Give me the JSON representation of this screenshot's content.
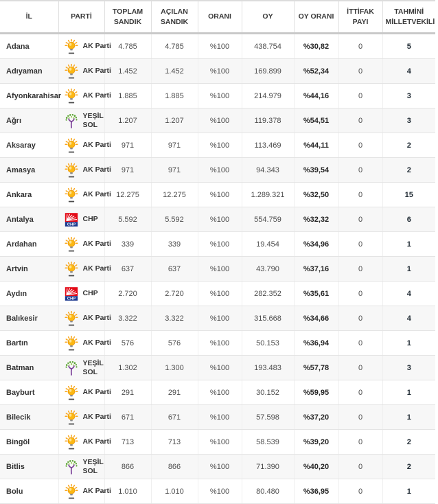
{
  "table": {
    "columns": [
      {
        "key": "il",
        "label": "İL"
      },
      {
        "key": "parti",
        "label": "PARTİ"
      },
      {
        "key": "toplam_sandik",
        "label": "TOPLAM SANDIK"
      },
      {
        "key": "acilan_sandik",
        "label": "AÇILAN SANDIK"
      },
      {
        "key": "orani",
        "label": "ORANI"
      },
      {
        "key": "oy",
        "label": "OY"
      },
      {
        "key": "oy_orani",
        "label": "OY ORANI"
      },
      {
        "key": "ittifak_payi",
        "label": "İTTİFAK PAYI"
      },
      {
        "key": "tahmini_milletvekili",
        "label": "TAHMİNİ MİLLETVEKİLİ"
      }
    ],
    "rows": [
      {
        "il": "Adana",
        "party": {
          "name": "AK Parti",
          "icon": "ak-parti-logo"
        },
        "toplam_sandik": "4.785",
        "acilan_sandik": "4.785",
        "orani": "%100",
        "oy": "438.754",
        "oy_orani": "%30,82",
        "ittifak_payi": "0",
        "tahmini_milletvekili": "5"
      },
      {
        "il": "Adıyaman",
        "party": {
          "name": "AK Parti",
          "icon": "ak-parti-logo"
        },
        "toplam_sandik": "1.452",
        "acilan_sandik": "1.452",
        "orani": "%100",
        "oy": "169.899",
        "oy_orani": "%52,34",
        "ittifak_payi": "0",
        "tahmini_milletvekili": "4"
      },
      {
        "il": "Afyonkarahisar",
        "party": {
          "name": "AK Parti",
          "icon": "ak-parti-logo"
        },
        "toplam_sandik": "1.885",
        "acilan_sandik": "1.885",
        "orani": "%100",
        "oy": "214.979",
        "oy_orani": "%44,16",
        "ittifak_payi": "0",
        "tahmini_milletvekili": "3"
      },
      {
        "il": "Ağrı",
        "party": {
          "name": "YEŞİL SOL",
          "icon": "yesil-sol-logo"
        },
        "toplam_sandik": "1.207",
        "acilan_sandik": "1.207",
        "orani": "%100",
        "oy": "119.378",
        "oy_orani": "%54,51",
        "ittifak_payi": "0",
        "tahmini_milletvekili": "3"
      },
      {
        "il": "Aksaray",
        "party": {
          "name": "AK Parti",
          "icon": "ak-parti-logo"
        },
        "toplam_sandik": "971",
        "acilan_sandik": "971",
        "orani": "%100",
        "oy": "113.469",
        "oy_orani": "%44,11",
        "ittifak_payi": "0",
        "tahmini_milletvekili": "2"
      },
      {
        "il": "Amasya",
        "party": {
          "name": "AK Parti",
          "icon": "ak-parti-logo"
        },
        "toplam_sandik": "971",
        "acilan_sandik": "971",
        "orani": "%100",
        "oy": "94.343",
        "oy_orani": "%39,54",
        "ittifak_payi": "0",
        "tahmini_milletvekili": "2"
      },
      {
        "il": "Ankara",
        "party": {
          "name": "AK Parti",
          "icon": "ak-parti-logo"
        },
        "toplam_sandik": "12.275",
        "acilan_sandik": "12.275",
        "orani": "%100",
        "oy": "1.289.321",
        "oy_orani": "%32,50",
        "ittifak_payi": "0",
        "tahmini_milletvekili": "15"
      },
      {
        "il": "Antalya",
        "party": {
          "name": "CHP",
          "icon": "chp-logo"
        },
        "toplam_sandik": "5.592",
        "acilan_sandik": "5.592",
        "orani": "%100",
        "oy": "554.759",
        "oy_orani": "%32,32",
        "ittifak_payi": "0",
        "tahmini_milletvekili": "6"
      },
      {
        "il": "Ardahan",
        "party": {
          "name": "AK Parti",
          "icon": "ak-parti-logo"
        },
        "toplam_sandik": "339",
        "acilan_sandik": "339",
        "orani": "%100",
        "oy": "19.454",
        "oy_orani": "%34,96",
        "ittifak_payi": "0",
        "tahmini_milletvekili": "1"
      },
      {
        "il": "Artvin",
        "party": {
          "name": "AK Parti",
          "icon": "ak-parti-logo"
        },
        "toplam_sandik": "637",
        "acilan_sandik": "637",
        "orani": "%100",
        "oy": "43.790",
        "oy_orani": "%37,16",
        "ittifak_payi": "0",
        "tahmini_milletvekili": "1"
      },
      {
        "il": "Aydın",
        "party": {
          "name": "CHP",
          "icon": "chp-logo"
        },
        "toplam_sandik": "2.720",
        "acilan_sandik": "2.720",
        "orani": "%100",
        "oy": "282.352",
        "oy_orani": "%35,61",
        "ittifak_payi": "0",
        "tahmini_milletvekili": "4"
      },
      {
        "il": "Balıkesir",
        "party": {
          "name": "AK Parti",
          "icon": "ak-parti-logo"
        },
        "toplam_sandik": "3.322",
        "acilan_sandik": "3.322",
        "orani": "%100",
        "oy": "315.668",
        "oy_orani": "%34,66",
        "ittifak_payi": "0",
        "tahmini_milletvekili": "4"
      },
      {
        "il": "Bartın",
        "party": {
          "name": "AK Parti",
          "icon": "ak-parti-logo"
        },
        "toplam_sandik": "576",
        "acilan_sandik": "576",
        "orani": "%100",
        "oy": "50.153",
        "oy_orani": "%36,94",
        "ittifak_payi": "0",
        "tahmini_milletvekili": "1"
      },
      {
        "il": "Batman",
        "party": {
          "name": "YEŞİL SOL",
          "icon": "yesil-sol-logo"
        },
        "toplam_sandik": "1.302",
        "acilan_sandik": "1.300",
        "orani": "%100",
        "oy": "193.483",
        "oy_orani": "%57,78",
        "ittifak_payi": "0",
        "tahmini_milletvekili": "3"
      },
      {
        "il": "Bayburt",
        "party": {
          "name": "AK Parti",
          "icon": "ak-parti-logo"
        },
        "toplam_sandik": "291",
        "acilan_sandik": "291",
        "orani": "%100",
        "oy": "30.152",
        "oy_orani": "%59,95",
        "ittifak_payi": "0",
        "tahmini_milletvekili": "1"
      },
      {
        "il": "Bilecik",
        "party": {
          "name": "AK Parti",
          "icon": "ak-parti-logo"
        },
        "toplam_sandik": "671",
        "acilan_sandik": "671",
        "orani": "%100",
        "oy": "57.598",
        "oy_orani": "%37,20",
        "ittifak_payi": "0",
        "tahmini_milletvekili": "1"
      },
      {
        "il": "Bingöl",
        "party": {
          "name": "AK Parti",
          "icon": "ak-parti-logo"
        },
        "toplam_sandik": "713",
        "acilan_sandik": "713",
        "orani": "%100",
        "oy": "58.539",
        "oy_orani": "%39,20",
        "ittifak_payi": "0",
        "tahmini_milletvekili": "2"
      },
      {
        "il": "Bitlis",
        "party": {
          "name": "YEŞİL SOL",
          "icon": "yesil-sol-logo"
        },
        "toplam_sandik": "866",
        "acilan_sandik": "866",
        "orani": "%100",
        "oy": "71.390",
        "oy_orani": "%40,20",
        "ittifak_payi": "0",
        "tahmini_milletvekili": "2"
      },
      {
        "il": "Bolu",
        "party": {
          "name": "AK Parti",
          "icon": "ak-parti-logo"
        },
        "toplam_sandik": "1.010",
        "acilan_sandik": "1.010",
        "orani": "%100",
        "oy": "80.480",
        "oy_orani": "%36,95",
        "ittifak_payi": "0",
        "tahmini_milletvekili": "1"
      }
    ]
  },
  "colors": {
    "ak_yellow": "#fcb813",
    "ak_ray": "#f9a61a",
    "ak_base_gray": "#8e8e8e",
    "chp_red": "#e30a17",
    "chp_blue": "#1d3a8f",
    "ysp_green": "#58a32f",
    "ysp_light_green": "#8cc63f",
    "ysp_purple": "#7a3f98",
    "row_stripe": "#f7f7f7",
    "mv_text": "#1f2a33",
    "oy_orani_text": "#262626"
  }
}
